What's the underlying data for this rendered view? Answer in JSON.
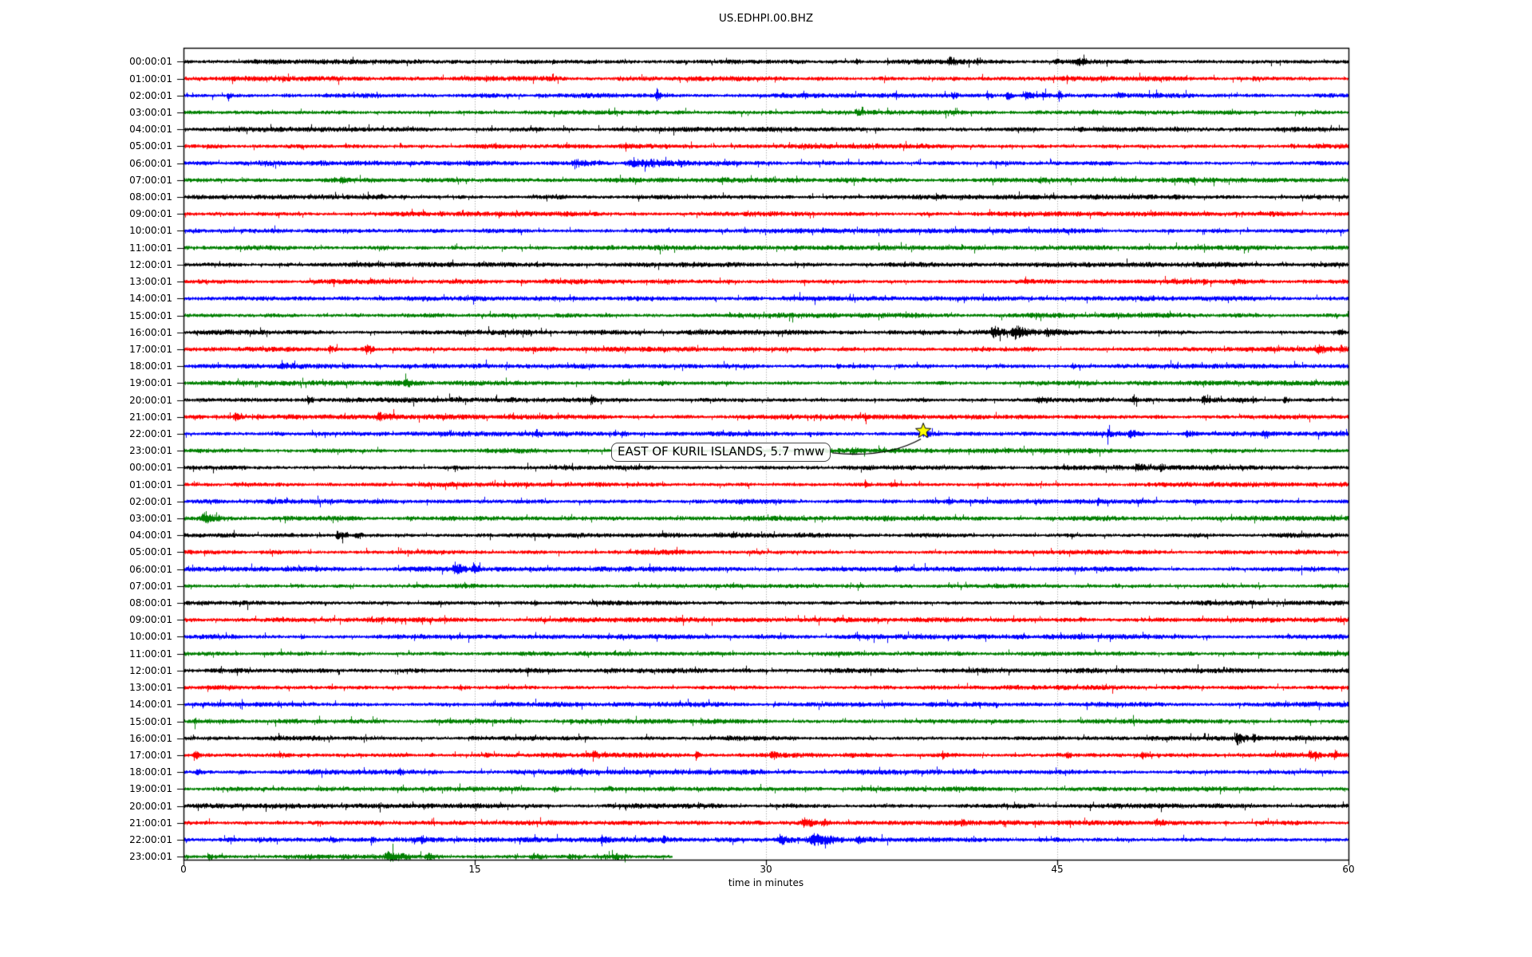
{
  "title": "US.EDHPI.00.BHZ",
  "chart_data": {
    "type": "line",
    "subtype": "seismogram-dayplot-helicorder",
    "title": "US.EDHPI.00.BHZ",
    "xlabel": "time in minutes",
    "xlim": [
      0,
      60
    ],
    "x_ticks": [
      0,
      15,
      30,
      45,
      60
    ],
    "x_gridlines": [
      15,
      30,
      45
    ],
    "grid_on": true,
    "grid_color": "#999999",
    "axes_color": "#000000",
    "trace_color_cycle": [
      "#000000",
      "#ff0000",
      "#0000ff",
      "#008000"
    ],
    "rows_note": "each row = one hour of data; color = index into trace_color_cycle; events = [start_minute, duration_minutes, amplitude_multiplier]; end = last minute with data",
    "rows": [
      {
        "label": "00:00:01",
        "color": 0,
        "end": 60,
        "events": [
          [
            34.6,
            0.3,
            2.2
          ],
          [
            37.7,
            0.3,
            2
          ],
          [
            39.3,
            0.6,
            2.4
          ],
          [
            40.8,
            0.3,
            2
          ],
          [
            44.8,
            0.3,
            2
          ],
          [
            45.9,
            0.6,
            2.6
          ],
          [
            48.4,
            0.4,
            2.2
          ]
        ]
      },
      {
        "label": "01:00:01",
        "color": 1,
        "end": 60,
        "events": [
          [
            39.5,
            1,
            1.7
          ],
          [
            55,
            0.4,
            1.8
          ]
        ]
      },
      {
        "label": "02:00:01",
        "color": 2,
        "end": 60,
        "events": [
          [
            2.2,
            0.3,
            2.5
          ],
          [
            24.3,
            0.3,
            3.5
          ],
          [
            39.5,
            0.4,
            2.6
          ],
          [
            41.3,
            0.4,
            3.2
          ],
          [
            42.3,
            0.6,
            3.4
          ],
          [
            43.2,
            0.8,
            3
          ],
          [
            44.2,
            0.3,
            2.6
          ],
          [
            45,
            0.25,
            5
          ],
          [
            48,
            0.4,
            1.8
          ]
        ]
      },
      {
        "label": "03:00:01",
        "color": 3,
        "end": 60,
        "events": [
          [
            34.5,
            0.8,
            2
          ]
        ]
      },
      {
        "label": "04:00:01",
        "color": 0,
        "end": 60,
        "events": []
      },
      {
        "label": "05:00:01",
        "color": 1,
        "end": 60,
        "events": [
          [
            12.2,
            0.25,
            1.9
          ]
        ]
      },
      {
        "label": "06:00:01",
        "color": 2,
        "end": 60,
        "events": [
          [
            19.9,
            1.6,
            2.2
          ],
          [
            22.6,
            2.6,
            3
          ],
          [
            25.4,
            0.6,
            2
          ]
        ]
      },
      {
        "label": "07:00:01",
        "color": 3,
        "end": 60,
        "events": [
          [
            8,
            0.8,
            1.6
          ],
          [
            44,
            0.5,
            1.6
          ]
        ]
      },
      {
        "label": "08:00:01",
        "color": 0,
        "end": 60,
        "events": []
      },
      {
        "label": "09:00:01",
        "color": 1,
        "end": 60,
        "events": []
      },
      {
        "label": "10:00:01",
        "color": 2,
        "end": 60,
        "events": []
      },
      {
        "label": "11:00:01",
        "color": 3,
        "end": 60,
        "events": [
          [
            10.2,
            0.4,
            1.6
          ]
        ]
      },
      {
        "label": "12:00:01",
        "color": 0,
        "end": 60,
        "events": []
      },
      {
        "label": "13:00:01",
        "color": 1,
        "end": 60,
        "events": []
      },
      {
        "label": "14:00:01",
        "color": 2,
        "end": 60,
        "events": []
      },
      {
        "label": "15:00:01",
        "color": 3,
        "end": 60,
        "events": []
      },
      {
        "label": "16:00:01",
        "color": 0,
        "end": 60,
        "events": [
          [
            41.5,
            0.8,
            3.4
          ],
          [
            42.5,
            1.6,
            2.8
          ],
          [
            44.3,
            0.8,
            2
          ],
          [
            59.4,
            0.5,
            2.6
          ]
        ]
      },
      {
        "label": "17:00:01",
        "color": 1,
        "end": 60,
        "events": [
          [
            7.4,
            0.5,
            2.4
          ],
          [
            9.3,
            0.5,
            3
          ],
          [
            58.3,
            0.8,
            2.4
          ],
          [
            59.5,
            0.4,
            2
          ]
        ]
      },
      {
        "label": "18:00:01",
        "color": 2,
        "end": 60,
        "events": [
          [
            4.8,
            1.4,
            2
          ],
          [
            33.6,
            0.3,
            2.4
          ],
          [
            36.8,
            0.3,
            2
          ],
          [
            45.7,
            0.3,
            2.2
          ]
        ]
      },
      {
        "label": "19:00:01",
        "color": 3,
        "end": 60,
        "events": [
          [
            11.3,
            1,
            1.8
          ],
          [
            24.5,
            0.5,
            1.6
          ]
        ]
      },
      {
        "label": "20:00:01",
        "color": 0,
        "end": 60,
        "events": [
          [
            6.3,
            0.4,
            2.8
          ],
          [
            16.8,
            0.3,
            2
          ],
          [
            20.9,
            0.4,
            2.4
          ],
          [
            38,
            0.5,
            1.9
          ],
          [
            43.8,
            0.9,
            2.2
          ],
          [
            48.8,
            0.5,
            2.4
          ],
          [
            52.4,
            0.5,
            2.4
          ],
          [
            55,
            0.3,
            2
          ],
          [
            56.6,
            0.4,
            2.8
          ]
        ]
      },
      {
        "label": "21:00:01",
        "color": 1,
        "end": 60,
        "events": [
          [
            2.5,
            0.7,
            3
          ],
          [
            3.7,
            0.4,
            2.5
          ],
          [
            9.8,
            1.3,
            2
          ],
          [
            35,
            0.4,
            1.8
          ]
        ]
      },
      {
        "label": "22:00:01",
        "color": 2,
        "end": 60,
        "events": [
          [
            18.1,
            0.4,
            2.4
          ],
          [
            22.5,
            0.4,
            2.4
          ],
          [
            38.1,
            1,
            1.9
          ],
          [
            40,
            2.5,
            1.5
          ],
          [
            47.5,
            0.5,
            2.2
          ],
          [
            48.6,
            0.8,
            2.4
          ],
          [
            51.5,
            0.8,
            2.6
          ],
          [
            55.5,
            0.4,
            1.8
          ]
        ]
      },
      {
        "label": "23:00:01",
        "color": 3,
        "end": 60,
        "events": [
          [
            34.3,
            0.8,
            2
          ]
        ]
      },
      {
        "label": "00:00:01",
        "color": 0,
        "end": 60,
        "events": [
          [
            41,
            0.4,
            2
          ],
          [
            48.9,
            0.9,
            2.4
          ],
          [
            50.2,
            0.4,
            2
          ]
        ]
      },
      {
        "label": "01:00:01",
        "color": 1,
        "end": 60,
        "events": [
          [
            35,
            0.5,
            3
          ],
          [
            36.3,
            0.5,
            2.4
          ]
        ]
      },
      {
        "label": "02:00:01",
        "color": 2,
        "end": 60,
        "events": [
          [
            39.3,
            0.4,
            2.4
          ],
          [
            47,
            0.3,
            2
          ]
        ]
      },
      {
        "label": "03:00:01",
        "color": 3,
        "end": 60,
        "events": [
          [
            0.8,
            1.4,
            3
          ],
          [
            11.5,
            0.5,
            2
          ],
          [
            36,
            0.3,
            2
          ]
        ]
      },
      {
        "label": "04:00:01",
        "color": 0,
        "end": 60,
        "events": [
          [
            7.8,
            0.6,
            3.2
          ],
          [
            8.8,
            0.5,
            2.4
          ]
        ]
      },
      {
        "label": "05:00:01",
        "color": 1,
        "end": 60,
        "events": []
      },
      {
        "label": "06:00:01",
        "color": 2,
        "end": 60,
        "events": [
          [
            13.8,
            0.8,
            3
          ],
          [
            14.8,
            0.7,
            2.4
          ],
          [
            36.6,
            0.3,
            2
          ]
        ]
      },
      {
        "label": "07:00:01",
        "color": 3,
        "end": 60,
        "events": []
      },
      {
        "label": "08:00:01",
        "color": 0,
        "end": 60,
        "events": [
          [
            18,
            0.4,
            1.7
          ]
        ]
      },
      {
        "label": "09:00:01",
        "color": 1,
        "end": 60,
        "events": []
      },
      {
        "label": "10:00:01",
        "color": 2,
        "end": 60,
        "events": [
          [
            6,
            0.3,
            2.2
          ]
        ]
      },
      {
        "label": "11:00:01",
        "color": 3,
        "end": 60,
        "events": []
      },
      {
        "label": "12:00:01",
        "color": 0,
        "end": 60,
        "events": []
      },
      {
        "label": "13:00:01",
        "color": 1,
        "end": 60,
        "events": []
      },
      {
        "label": "14:00:01",
        "color": 2,
        "end": 60,
        "events": []
      },
      {
        "label": "15:00:01",
        "color": 3,
        "end": 60,
        "events": [
          [
            0.5,
            0.4,
            2
          ]
        ]
      },
      {
        "label": "16:00:01",
        "color": 0,
        "end": 60,
        "events": [
          [
            54.1,
            0.8,
            3.2
          ],
          [
            55,
            0.4,
            2
          ]
        ]
      },
      {
        "label": "17:00:01",
        "color": 1,
        "end": 60,
        "events": [
          [
            0.4,
            0.5,
            2.8
          ],
          [
            15.5,
            0.3,
            2.2
          ],
          [
            21,
            0.4,
            2.4
          ],
          [
            26.3,
            0.4,
            3
          ],
          [
            30.2,
            0.4,
            2.4
          ],
          [
            33.5,
            3,
            1.5
          ],
          [
            39,
            0.4,
            2.2
          ],
          [
            45.4,
            0.4,
            2.4
          ],
          [
            49.3,
            0.4,
            2.2
          ],
          [
            57.9,
            0.7,
            2.8
          ],
          [
            59.2,
            0.4,
            2.6
          ]
        ]
      },
      {
        "label": "18:00:01",
        "color": 2,
        "end": 60,
        "events": [
          [
            0.6,
            0.5,
            2.6
          ],
          [
            2.9,
            0.3,
            2
          ],
          [
            11,
            0.4,
            2
          ],
          [
            20.3,
            0.5,
            2.2
          ]
        ]
      },
      {
        "label": "19:00:01",
        "color": 3,
        "end": 60,
        "events": [
          [
            19,
            0.5,
            1.8
          ]
        ]
      },
      {
        "label": "20:00:01",
        "color": 0,
        "end": 60,
        "events": []
      },
      {
        "label": "21:00:01",
        "color": 1,
        "end": 60,
        "events": [
          [
            31.8,
            0.8,
            2.8
          ],
          [
            32.8,
            0.6,
            2.4
          ],
          [
            40,
            0.4,
            1.8
          ],
          [
            50,
            0.6,
            2.2
          ]
        ]
      },
      {
        "label": "22:00:01",
        "color": 2,
        "end": 60,
        "events": [
          [
            7.6,
            0.3,
            2.5
          ],
          [
            9.6,
            0.3,
            3
          ],
          [
            12.2,
            0.3,
            2.5
          ],
          [
            21.4,
            0.6,
            2.5
          ],
          [
            24.6,
            0.3,
            2.2
          ],
          [
            30.5,
            1,
            2.5
          ],
          [
            32,
            2,
            3
          ],
          [
            34.5,
            1.5,
            2.5
          ]
        ]
      },
      {
        "label": "23:00:01",
        "color": 3,
        "end": 25.2,
        "events": [
          [
            1.2,
            0.3,
            3
          ],
          [
            10.3,
            1.4,
            2.4
          ],
          [
            12.4,
            1,
            2.2
          ],
          [
            17.8,
            1,
            2.2
          ],
          [
            19.7,
            1,
            2.2
          ],
          [
            22,
            0.8,
            1.8
          ]
        ]
      }
    ],
    "annotation": {
      "text": "EAST OF KURIL ISLANDS, 5.7 mww",
      "marker": "star",
      "marker_fill": "#ffff00",
      "marker_edge": "#000000",
      "target_row_index": 22,
      "target_row_label": "22:00:01",
      "target_minute": 38.1
    }
  }
}
